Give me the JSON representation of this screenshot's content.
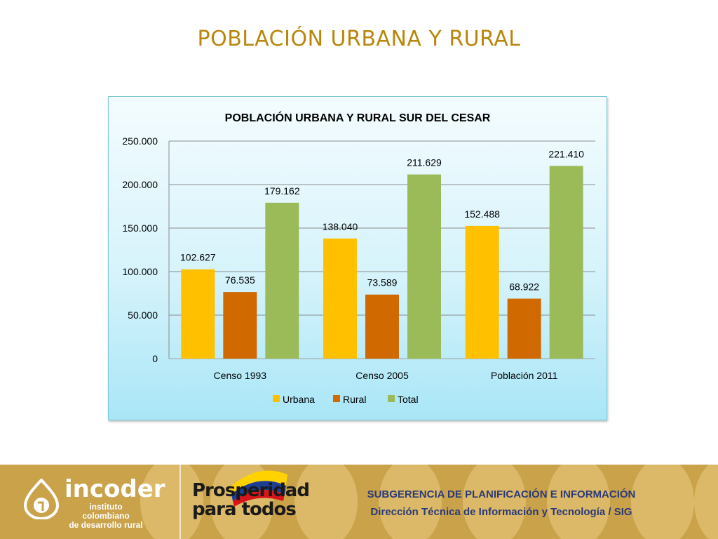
{
  "slide": {
    "title": "POBLACIÓN URBANA Y RURAL"
  },
  "chart_data": {
    "type": "bar",
    "title": "POBLACIÓN URBANA Y RURAL SUR DEL CESAR",
    "categories": [
      "Censo 1993",
      "Censo 2005",
      "Población 2011"
    ],
    "series": [
      {
        "name": "Urbana",
        "values": [
          102627,
          138040,
          152488
        ],
        "labels": [
          "102.627",
          "138.040",
          "152.488"
        ],
        "color": "#ffc000"
      },
      {
        "name": "Rural",
        "values": [
          76535,
          73589,
          68922
        ],
        "labels": [
          "76.535",
          "73.589",
          "68.922"
        ],
        "color": "#d06a00"
      },
      {
        "name": "Total",
        "values": [
          179162,
          211629,
          221410
        ],
        "labels": [
          "179.162",
          "211.629",
          "221.410"
        ],
        "color": "#9bbb59"
      }
    ],
    "ylim": [
      0,
      250000
    ],
    "yticks": [
      0,
      50000,
      100000,
      150000,
      200000,
      250000
    ],
    "ytick_labels": [
      "0",
      "50.000",
      "100.000",
      "150.000",
      "200.000",
      "250.000"
    ],
    "grid": true,
    "legend_position": "bottom",
    "xlabel": "",
    "ylabel": ""
  },
  "footer": {
    "logo_name": "incoder",
    "logo_subtitle_1": "instituto colombiano",
    "logo_subtitle_2": "de desarrollo rural",
    "slogan_1": "Prosperidad",
    "slogan_2": "para todos",
    "org_line_1": "SUBGERENCIA DE PLANIFICACIÓN E INFORMACIÓN",
    "org_line_2": "Dirección Técnica de Información y Tecnología / SIG"
  }
}
